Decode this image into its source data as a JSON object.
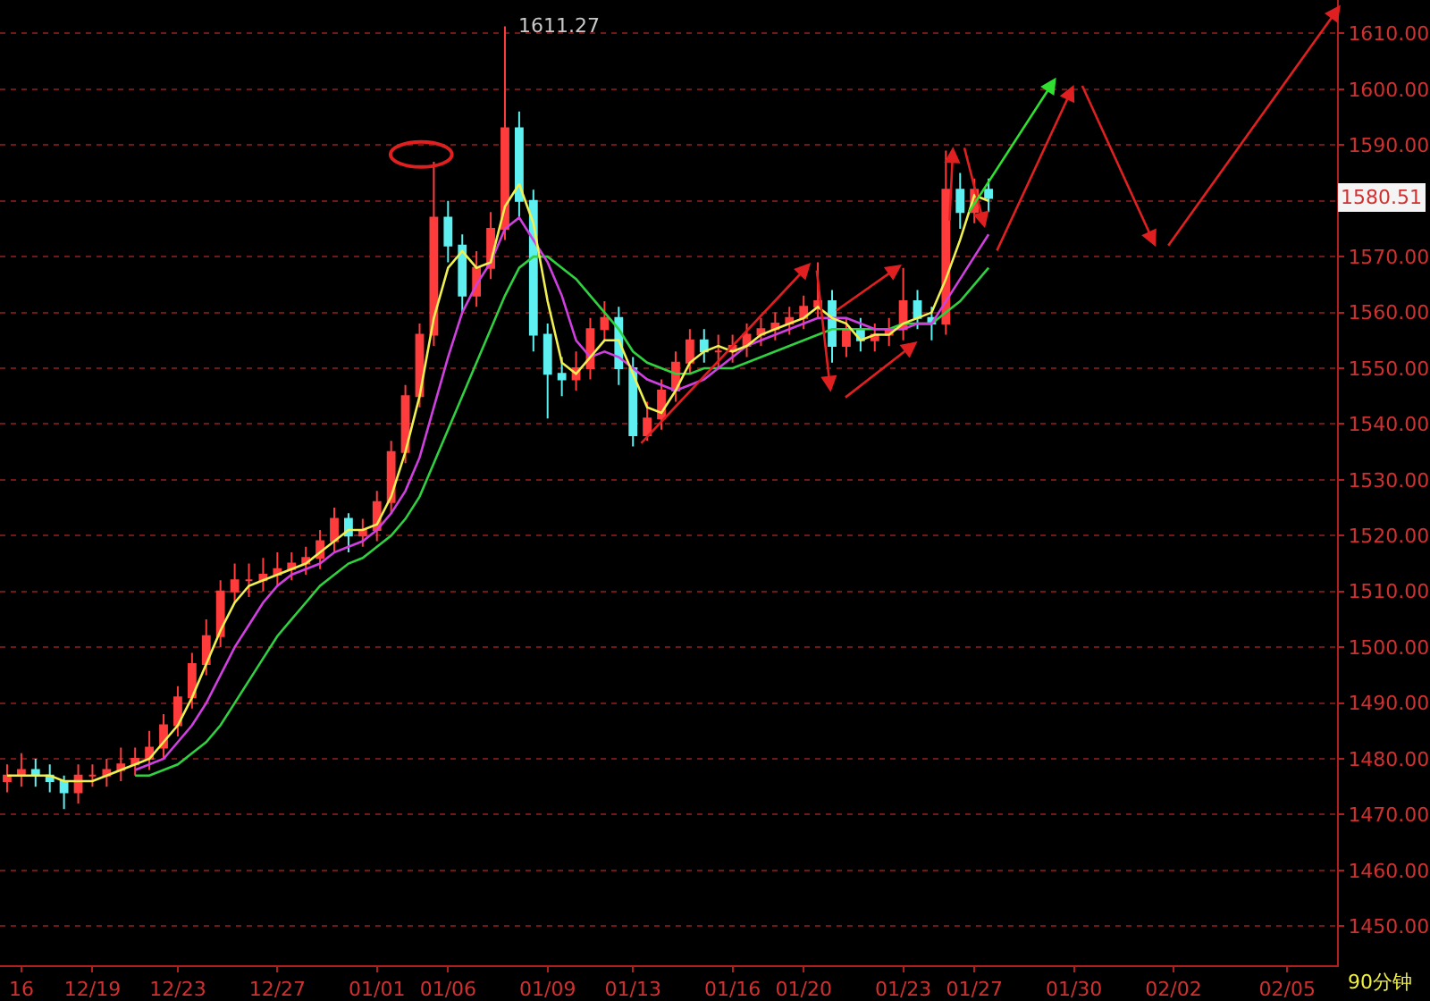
{
  "chart_data": {
    "type": "candlestick",
    "categories": [
      null,
      "16",
      null,
      null,
      null,
      null,
      "12/19",
      null,
      null,
      null,
      null,
      null,
      "12/23",
      null,
      null,
      null,
      null,
      null,
      null,
      "12/27",
      null,
      null,
      null,
      null,
      null,
      null,
      "01/01",
      null,
      null,
      null,
      null,
      "01/06",
      null,
      null,
      null,
      null,
      null,
      null,
      "01/09",
      null,
      null,
      null,
      null,
      null,
      "01/13",
      null,
      null,
      null,
      null,
      null,
      null,
      "01/16",
      null,
      null,
      null,
      null,
      "01/20",
      null,
      null,
      null,
      null,
      null,
      null,
      "01/23",
      null,
      null,
      null,
      null,
      "01/27",
      null,
      null,
      null,
      null,
      null,
      null,
      "01/30",
      null,
      null,
      null,
      null,
      null,
      null,
      "02/02",
      null,
      null,
      null,
      null,
      null,
      null,
      null,
      "02/05",
      null,
      null,
      null
    ],
    "ohlc": [
      [
        1476,
        1479,
        1474,
        1477
      ],
      [
        1477,
        1481,
        1475,
        1478
      ],
      [
        1478,
        1480,
        1475,
        1477
      ],
      [
        1477,
        1479,
        1474,
        1476
      ],
      [
        1476,
        1477,
        1471,
        1474
      ],
      [
        1474,
        1479,
        1472,
        1477
      ],
      [
        1477,
        1479,
        1475,
        1477
      ],
      [
        1477,
        1480,
        1475,
        1478
      ],
      [
        1478,
        1482,
        1476,
        1479
      ],
      [
        1479,
        1482,
        1477,
        1480
      ],
      [
        1480,
        1485,
        1478,
        1482
      ],
      [
        1482,
        1488,
        1480,
        1486
      ],
      [
        1486,
        1493,
        1484,
        1491
      ],
      [
        1491,
        1499,
        1489,
        1497
      ],
      [
        1497,
        1505,
        1495,
        1502
      ],
      [
        1502,
        1512,
        1500,
        1510
      ],
      [
        1510,
        1515,
        1508,
        1512
      ],
      [
        1512,
        1515,
        1509,
        1512
      ],
      [
        1512,
        1516,
        1510,
        1513
      ],
      [
        1513,
        1517,
        1511,
        1514
      ],
      [
        1514,
        1517,
        1512,
        1515
      ],
      [
        1515,
        1518,
        1513,
        1516
      ],
      [
        1516,
        1521,
        1514,
        1519
      ],
      [
        1519,
        1525,
        1517,
        1523
      ],
      [
        1523,
        1524,
        1517,
        1520
      ],
      [
        1520,
        1523,
        1518,
        1521
      ],
      [
        1521,
        1528,
        1519,
        1526
      ],
      [
        1526,
        1537,
        1524,
        1535
      ],
      [
        1535,
        1547,
        1533,
        1545
      ],
      [
        1545,
        1558,
        1543,
        1556
      ],
      [
        1556,
        1587,
        1554,
        1577
      ],
      [
        1577,
        1580,
        1569,
        1572
      ],
      [
        1572,
        1574,
        1560,
        1563
      ],
      [
        1563,
        1571,
        1561,
        1568
      ],
      [
        1568,
        1578,
        1566,
        1575
      ],
      [
        1575,
        1611.27,
        1573,
        1593
      ],
      [
        1593,
        1596,
        1577,
        1580
      ],
      [
        1580,
        1582,
        1553,
        1556
      ],
      [
        1556,
        1558,
        1541,
        1549
      ],
      [
        1549,
        1552,
        1545,
        1548
      ],
      [
        1548,
        1553,
        1546,
        1550
      ],
      [
        1550,
        1559,
        1548,
        1557
      ],
      [
        1557,
        1562,
        1555,
        1559
      ],
      [
        1559,
        1561,
        1547,
        1550
      ],
      [
        1550,
        1552,
        1536,
        1538
      ],
      [
        1538,
        1544,
        1537,
        1541
      ],
      [
        1541,
        1548,
        1539,
        1546
      ],
      [
        1546,
        1553,
        1544,
        1551
      ],
      [
        1551,
        1557,
        1549,
        1555
      ],
      [
        1555,
        1557,
        1551,
        1553
      ],
      [
        1553,
        1556,
        1550,
        1553
      ],
      [
        1553,
        1556,
        1551,
        1554
      ],
      [
        1554,
        1558,
        1552,
        1556
      ],
      [
        1556,
        1559,
        1554,
        1557
      ],
      [
        1557,
        1560,
        1555,
        1558
      ],
      [
        1558,
        1561,
        1556,
        1559
      ],
      [
        1559,
        1563,
        1557,
        1561
      ],
      [
        1561,
        1569,
        1559,
        1562
      ],
      [
        1562,
        1564,
        1551,
        1554
      ],
      [
        1554,
        1559,
        1552,
        1557
      ],
      [
        1557,
        1559,
        1553,
        1555
      ],
      [
        1555,
        1558,
        1553,
        1556
      ],
      [
        1556,
        1559,
        1554,
        1557
      ],
      [
        1557,
        1568,
        1555,
        1562
      ],
      [
        1562,
        1564,
        1557,
        1559
      ],
      [
        1559,
        1561,
        1555,
        1558
      ],
      [
        1558,
        1589,
        1556,
        1582
      ],
      [
        1582,
        1585,
        1575,
        1578
      ],
      [
        1578,
        1584,
        1576,
        1582
      ],
      [
        1582,
        1584,
        1578,
        1580.51
      ],
      null,
      null,
      null,
      null,
      null,
      null,
      null,
      null,
      null,
      null,
      null,
      null,
      null,
      null,
      null,
      null,
      null,
      null,
      null,
      null,
      null,
      null,
      null,
      null
    ],
    "colors": [
      "#ff3c3c",
      "#ff3c3c",
      "#5ef0f0",
      "#5ef0f0",
      "#5ef0f0",
      "#ff3c3c",
      "#ff3c3c",
      "#ff3c3c",
      "#ff3c3c",
      "#ff3c3c",
      "#ff3c3c",
      "#ff3c3c",
      "#ff3c3c",
      "#ff3c3c",
      "#ff3c3c",
      "#ff3c3c",
      "#ff3c3c",
      "#ff3c3c",
      "#ff3c3c",
      "#ff3c3c",
      "#ff3c3c",
      "#ff3c3c",
      "#ff3c3c",
      "#ff3c3c",
      "#5ef0f0",
      "#ff3c3c",
      "#ff3c3c",
      "#ff3c3c",
      "#ff3c3c",
      "#ff3c3c",
      "#ff3c3c",
      "#5ef0f0",
      "#5ef0f0",
      "#ff3c3c",
      "#ff3c3c",
      "#ff3c3c",
      "#5ef0f0",
      "#5ef0f0",
      "#5ef0f0",
      "#5ef0f0",
      "#ff3c3c",
      "#ff3c3c",
      "#ff3c3c",
      "#5ef0f0",
      "#5ef0f0",
      "#ff3c3c",
      "#ff3c3c",
      "#ff3c3c",
      "#ff3c3c",
      "#5ef0f0",
      "#ff3c3c",
      "#ff3c3c",
      "#ff3c3c",
      "#ff3c3c",
      "#ff3c3c",
      "#ff3c3c",
      "#ff3c3c",
      "#ff3c3c",
      "#5ef0f0",
      "#ff3c3c",
      "#5ef0f0",
      "#ff3c3c",
      "#ff3c3c",
      "#ff3c3c",
      "#5ef0f0",
      "#5ef0f0",
      "#ff3c3c",
      "#5ef0f0",
      "#ff3c3c",
      "#5ef0f0",
      null,
      null,
      null,
      null,
      null,
      null,
      null,
      null,
      null,
      null,
      null,
      null,
      null,
      null,
      null,
      null,
      null,
      null,
      null,
      null,
      null,
      null,
      null,
      null
    ],
    "series": [
      {
        "type": "line",
        "color": "#f0f050",
        "values": [
          1477,
          1477,
          1477,
          1477,
          1476,
          1476,
          1476,
          1477,
          1478,
          1479,
          1480,
          1483,
          1486,
          1491,
          1497,
          1503,
          1508,
          1511,
          1512,
          1513,
          1514,
          1515,
          1517,
          1519,
          1521,
          1521,
          1522,
          1527,
          1535,
          1545,
          1559,
          1568,
          1571,
          1568,
          1569,
          1579,
          1583,
          1576,
          1562,
          1551,
          1549,
          1552,
          1555,
          1555,
          1549,
          1543,
          1542,
          1546,
          1551,
          1553,
          1554,
          1553,
          1554,
          1556,
          1557,
          1558,
          1559,
          1561,
          1559,
          1558,
          1555,
          1556,
          1556,
          1558,
          1559,
          1560,
          1566,
          1573,
          1581,
          1580,
          null,
          null,
          null,
          null,
          null,
          null,
          null,
          null,
          null,
          null,
          null,
          null,
          null,
          null,
          null,
          null,
          null,
          null,
          null,
          null,
          null,
          null,
          null,
          null
        ]
      },
      {
        "type": "line",
        "color": "#d040e0",
        "values": [
          null,
          null,
          null,
          null,
          null,
          null,
          null,
          null,
          null,
          1478,
          1479,
          1480,
          1483,
          1486,
          1490,
          1495,
          1500,
          1504,
          1508,
          1511,
          1513,
          1514,
          1515,
          1517,
          1518,
          1519,
          1521,
          1524,
          1528,
          1534,
          1543,
          1552,
          1560,
          1565,
          1569,
          1575,
          1577,
          1573,
          1569,
          1563,
          1555,
          1552,
          1553,
          1552,
          1550,
          1548,
          1547,
          1546,
          1547,
          1548,
          1550,
          1552,
          1554,
          1555,
          1556,
          1557,
          1558,
          1559,
          1559,
          1559,
          1558,
          1557,
          1557,
          1557,
          1558,
          1558,
          1562,
          1566,
          1570,
          1574,
          null,
          null,
          null,
          null,
          null,
          null,
          null,
          null,
          null,
          null,
          null,
          null,
          null,
          null,
          null,
          null,
          null,
          null,
          null,
          null,
          null,
          null,
          null,
          null
        ]
      },
      {
        "type": "line",
        "color": "#30d040",
        "values": [
          null,
          null,
          null,
          null,
          null,
          null,
          null,
          null,
          null,
          1477,
          1477,
          1478,
          1479,
          1481,
          1483,
          1486,
          1490,
          1494,
          1498,
          1502,
          1505,
          1508,
          1511,
          1513,
          1515,
          1516,
          1518,
          1520,
          1523,
          1527,
          1533,
          1539,
          1545,
          1551,
          1557,
          1563,
          1568,
          1570,
          1570,
          1568,
          1566,
          1563,
          1560,
          1557,
          1553,
          1551,
          1550,
          1549,
          1549,
          1550,
          1550,
          1550,
          1551,
          1552,
          1553,
          1554,
          1555,
          1556,
          1557,
          1557,
          1557,
          1557,
          1557,
          1558,
          1558,
          1558,
          1560,
          1562,
          1565,
          1568,
          null,
          null,
          null,
          null,
          null,
          null,
          null,
          null,
          null,
          null,
          null,
          null,
          null,
          null,
          null,
          null,
          null,
          null,
          null,
          null,
          null,
          null,
          null,
          null
        ]
      }
    ],
    "ylim": [
      1443,
      1616
    ],
    "yticks": [
      {
        "value": 1450,
        "label": "1450.00"
      },
      {
        "value": 1460,
        "label": "1460.00"
      },
      {
        "value": 1470,
        "label": "1470.00"
      },
      {
        "value": 1480,
        "label": "1480.00"
      },
      {
        "value": 1490,
        "label": "1490.00"
      },
      {
        "value": 1500,
        "label": "1500.00"
      },
      {
        "value": 1510,
        "label": "1510.00"
      },
      {
        "value": 1520,
        "label": "1520.00"
      },
      {
        "value": 1530,
        "label": "1530.00"
      },
      {
        "value": 1540,
        "label": "1540.00"
      },
      {
        "value": 1550,
        "label": "1550.00"
      },
      {
        "value": 1560,
        "label": "1560.00"
      },
      {
        "value": 1570,
        "label": "1570.00"
      },
      {
        "value": 1580,
        "label": null
      },
      {
        "value": 1590,
        "label": "1590.00"
      },
      {
        "value": 1600,
        "label": "1600.00"
      },
      {
        "value": 1610,
        "label": "1610.00"
      }
    ],
    "grid": "y",
    "annotations": [
      "1611.27",
      "1580.51",
      "90分钟"
    ]
  }
}
